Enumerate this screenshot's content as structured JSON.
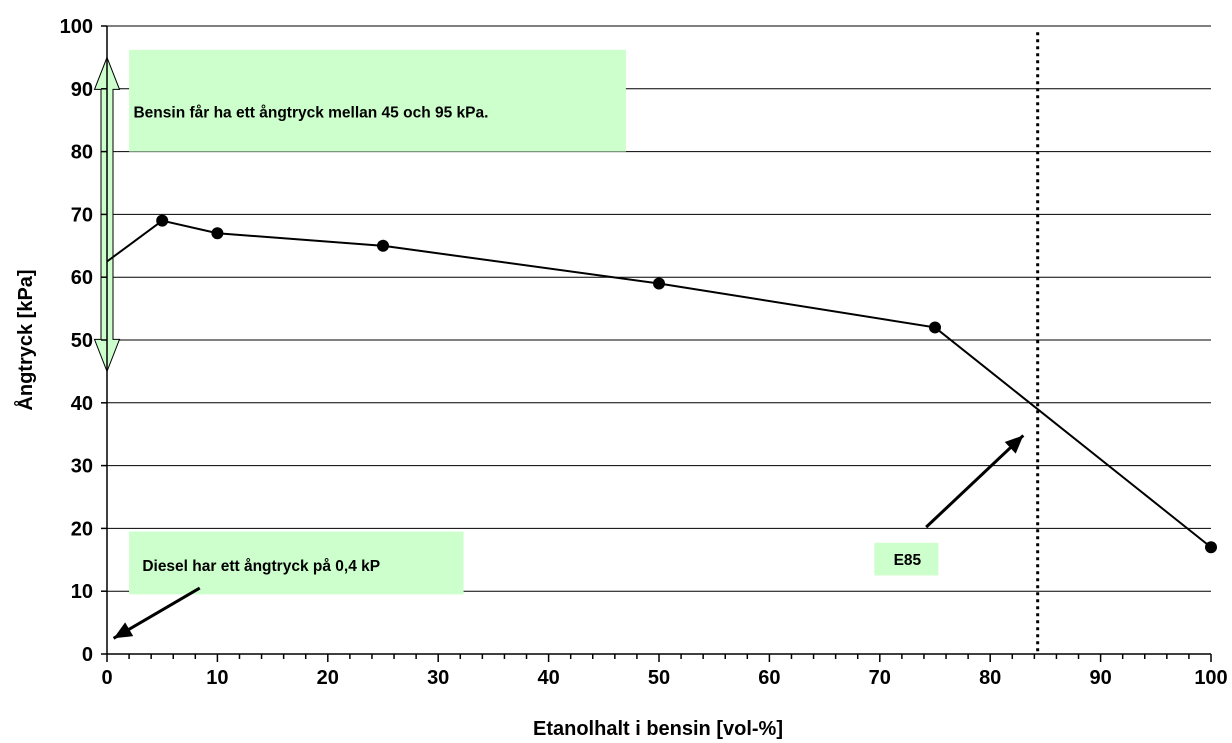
{
  "chart_data": {
    "type": "line",
    "xlabel": "Etanolhalt i bensin [vol-%]",
    "ylabel": "Ångtryck [kPa]",
    "xlim": [
      0,
      100
    ],
    "ylim": [
      0,
      100
    ],
    "x_major_ticks": [
      0,
      10,
      20,
      30,
      40,
      50,
      60,
      70,
      80,
      90,
      100
    ],
    "x_minor_step": 2,
    "y_ticks": [
      0,
      10,
      20,
      30,
      40,
      50,
      60,
      70,
      80,
      90,
      100
    ],
    "grid": "horizontal",
    "legend": "none",
    "series": [
      {
        "x": [
          0,
          5,
          10,
          25,
          50,
          75,
          100
        ],
        "y": [
          62.5,
          69,
          67,
          65,
          59,
          52,
          17
        ],
        "markers_at": [
          5,
          10,
          25,
          50,
          75,
          100
        ],
        "color": "#000000"
      }
    ],
    "reference_line": {
      "x": 84.3,
      "style": "dotted"
    },
    "annotations": {
      "gasoline_range": {
        "text": "Bensin får ha ett ångtryck mellan 45 och 95 kPa.",
        "range": [
          45,
          95
        ],
        "arrow_color": "#ccffcc"
      },
      "diesel": {
        "text": "Diesel har ett ångtryck på 0,4 kP"
      },
      "e85": {
        "text": "E85"
      }
    },
    "colors": {
      "note_background": "#ccffcc",
      "grid": "#000000"
    }
  }
}
